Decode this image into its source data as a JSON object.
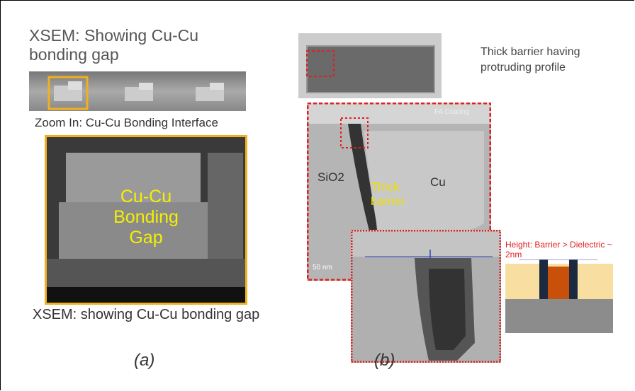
{
  "panel_a": {
    "title": "XSEM: Showing Cu-Cu bonding gap",
    "zoom_label": "Zoom In: Cu-Cu Bonding Interface",
    "gap_label": "Cu-Cu Bonding Gap",
    "caption": "XSEM: showing Cu-Cu bonding gap",
    "label": "(a)"
  },
  "panel_b": {
    "note": "Thick barrier having protruding profile",
    "coating_label": "FA Coating",
    "sio2_label": "SiO2",
    "cu_label": "Cu",
    "barrier_label": "Thick barrier",
    "scale_label": "50 nm",
    "height_label": "Height: Barrier > Dielectric ~ 2nm",
    "label": "(b)"
  }
}
